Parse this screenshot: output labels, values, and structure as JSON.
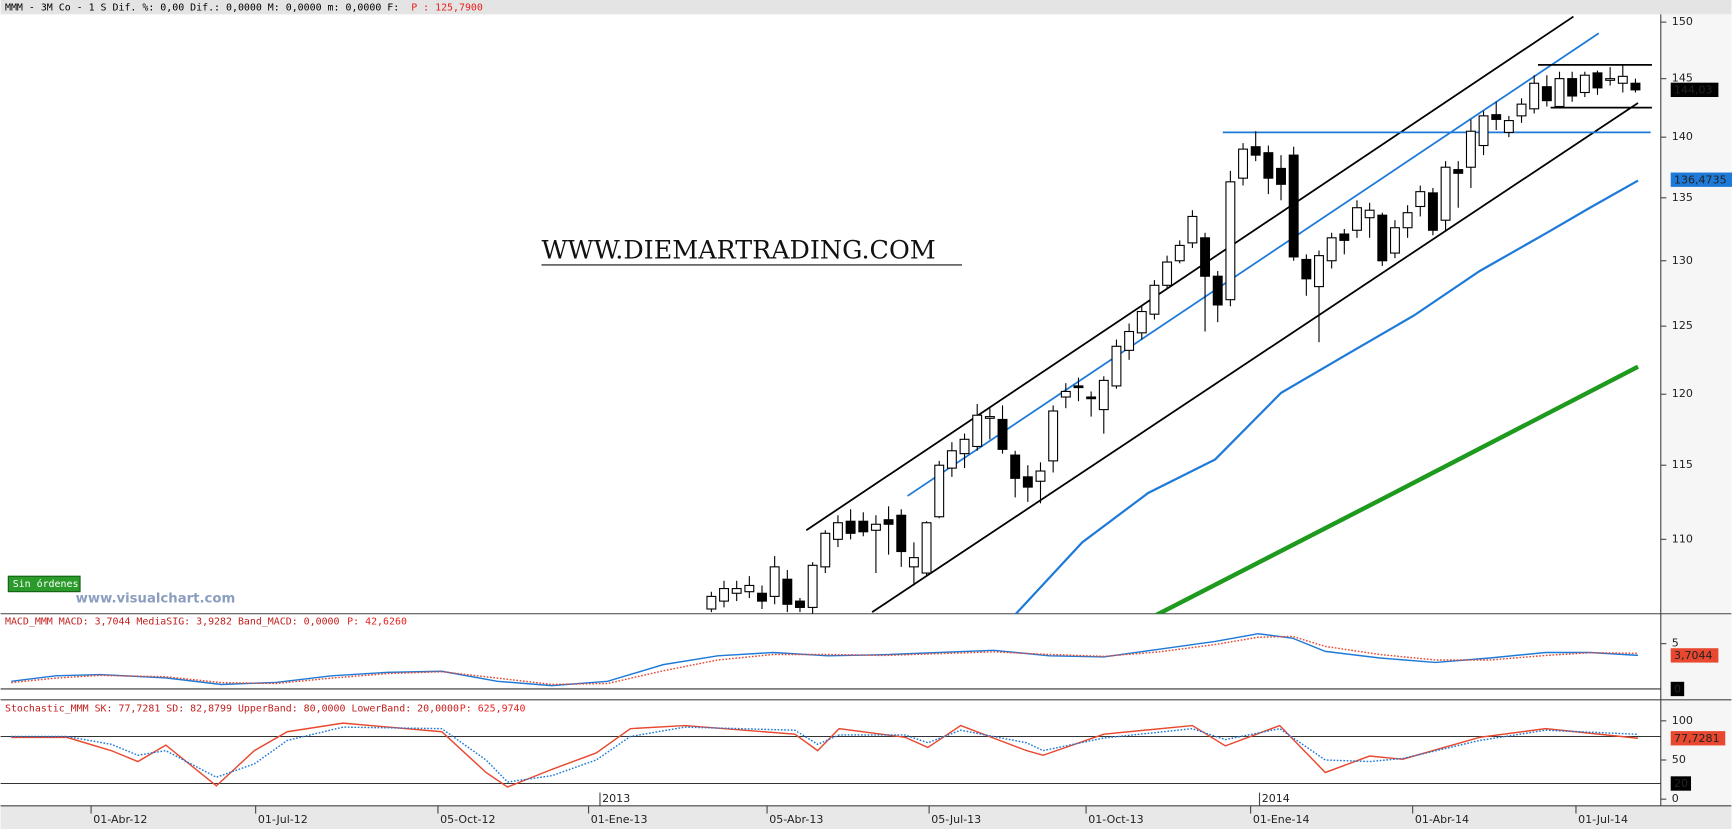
{
  "chart_data": [
    {
      "type": "candlestick",
      "title": "MMM - 3M Co -  1 S Dif. %: 0,00 Dif.: 0,0000 M: 0,0000 m: 0,0000 F:",
      "price_note": "P : 125,7900",
      "watermark": "WWW.DIEMARTRADING.COM",
      "source": "www.visualchart.com",
      "status": "Sin órdenes",
      "log_scale": true,
      "xlim": [
        -7.15,
        124.0
      ],
      "ylim": [
        105.2,
        150.6
      ],
      "yticks": [
        110,
        115,
        120,
        125,
        130,
        135,
        140,
        145,
        150
      ],
      "up_color": "#ffffff",
      "down_color": "#000000",
      "x": [
        49,
        50,
        51,
        52,
        53,
        54,
        55,
        56,
        57,
        58,
        59,
        60,
        61,
        62,
        63,
        64,
        65,
        66,
        67,
        68,
        69,
        70,
        71,
        72,
        73,
        74,
        75,
        76,
        77,
        78,
        79,
        80,
        81,
        82,
        83,
        84,
        85,
        86,
        87,
        88,
        89,
        90,
        91,
        92,
        93,
        94,
        95,
        96,
        97,
        98,
        99,
        100,
        101,
        102,
        103,
        104,
        105,
        106,
        107,
        108,
        109,
        110,
        111,
        112,
        113,
        114,
        115,
        116,
        117,
        118,
        119,
        120,
        121,
        122
      ],
      "open": [
        105.5,
        106,
        106.5,
        106.6,
        106.5,
        106.3,
        107.4,
        106,
        105.6,
        108.2,
        110,
        111.2,
        111.2,
        110.6,
        111.3,
        111.6,
        108.2,
        107.8,
        111.5,
        114.8,
        115.8,
        116.3,
        118.3,
        118.2,
        115.7,
        114.2,
        113.9,
        115.3,
        119.8,
        120.6,
        119.8,
        118.9,
        120.6,
        123.2,
        124.5,
        125.9,
        128.1,
        130,
        131.4,
        131.8,
        128.8,
        127,
        136.6,
        139.2,
        138.7,
        137.4,
        138.5,
        130.1,
        128,
        130,
        132.1,
        132.4,
        133.4,
        133.6,
        130.6,
        132.6,
        134.3,
        135.4,
        133.2,
        137.3,
        137.5,
        139.3,
        141.9,
        140.4,
        141.8,
        142.4,
        144.3,
        142.6,
        145,
        143.8,
        145.5,
        144.9,
        144.6,
        144.6
      ],
      "high": [
        106.6,
        107.3,
        107.3,
        107.6,
        107,
        108.9,
        108,
        106.2,
        108.5,
        110.6,
        111.6,
        112,
        111.8,
        111.6,
        112.2,
        112,
        109.8,
        111.2,
        115.3,
        116.6,
        117.2,
        119.3,
        119,
        119.2,
        116,
        115,
        115.2,
        119.2,
        120.8,
        121.2,
        120.2,
        121.3,
        124,
        125.2,
        126.6,
        128.5,
        130.4,
        131.6,
        134,
        132.2,
        129.2,
        137.2,
        139.5,
        140.5,
        139.3,
        138.5,
        139.2,
        130.5,
        130.8,
        132.2,
        132.5,
        134.8,
        134.6,
        133.8,
        133.2,
        134.4,
        136,
        135.8,
        138,
        138,
        141.5,
        142.2,
        143,
        141.8,
        143.3,
        145.3,
        145.3,
        145.6,
        145.6,
        145.6,
        145.7,
        146,
        146.2,
        145
      ],
      "low": [
        105.3,
        105.6,
        106,
        106.2,
        105.5,
        105.8,
        105.3,
        105.3,
        105.2,
        107.8,
        109.5,
        110,
        110.2,
        107.8,
        109,
        108.2,
        107,
        107.6,
        111.4,
        114.2,
        114.8,
        116,
        116.8,
        115.8,
        112.8,
        112.5,
        112.4,
        114.5,
        119,
        119.5,
        118.4,
        117.2,
        120.4,
        122.5,
        124,
        125.5,
        127.8,
        129.8,
        131,
        124.6,
        125.3,
        126.5,
        136,
        138,
        135.3,
        134.8,
        130,
        127.3,
        123.8,
        129.4,
        130.5,
        131.8,
        131.8,
        129.6,
        130.2,
        131.8,
        133.5,
        132,
        132.3,
        134.2,
        135.8,
        138.5,
        140.6,
        140,
        141.2,
        142,
        142.6,
        142.6,
        143,
        143.4,
        143.6,
        144.4,
        143.8,
        143.8
      ],
      "close": [
        106.3,
        106.8,
        106.8,
        107,
        106,
        108.2,
        105.8,
        105.6,
        108.3,
        110.4,
        111.1,
        110.4,
        110.5,
        111,
        111,
        109.2,
        108.8,
        111.1,
        115,
        116,
        116.8,
        118.5,
        118.4,
        116.1,
        114.1,
        113.5,
        114.6,
        118.8,
        120.2,
        120.5,
        119.7,
        121,
        123.5,
        124.6,
        126.1,
        128.1,
        129.9,
        131.2,
        133.5,
        128.8,
        126.6,
        136.3,
        139,
        138.5,
        136.6,
        136.1,
        130.3,
        128.6,
        130.4,
        131.8,
        131.6,
        134.2,
        134,
        130,
        132.6,
        133.8,
        135.5,
        132.4,
        137.5,
        137,
        140.5,
        141.8,
        141.5,
        141.4,
        142.8,
        144.6,
        143.1,
        145,
        143.5,
        145.3,
        144.2,
        145,
        145.2,
        144.03
      ],
      "moving_averages": [
        {
          "color": "#1e7ad8",
          "width": 2,
          "x": [
            72.9,
            78.3,
            83.5,
            88.8,
            94.0,
            99.2,
            104.5,
            109.7,
            115.0,
            118.4,
            122.2
          ],
          "values": [
            105.06,
            109.8,
            113.1,
            115.4,
            120.1,
            122.9,
            125.8,
            129.2,
            132.2,
            134.2,
            136.4
          ]
        },
        {
          "color": "#1e9a1e",
          "width": 4,
          "x": [
            84.0,
            102.7,
            122.2
          ],
          "values": [
            105.06,
            113.0,
            122.0
          ]
        }
      ],
      "trendlines": [
        {
          "color": "#000000",
          "x": [
            56.5,
            117.1
          ],
          "y": [
            110.6,
            150.5
          ]
        },
        {
          "color": "#000000",
          "x": [
            61.7,
            122.2
          ],
          "y": [
            105.3,
            142.9
          ]
        },
        {
          "color": "#1e7ad8",
          "x": [
            64.5,
            119.1
          ],
          "y": [
            112.9,
            149.0
          ]
        },
        {
          "color": "#1e7ad8",
          "x": [
            89.4,
            123.2
          ],
          "y": [
            140.4,
            140.4
          ]
        },
        {
          "color": "#000000",
          "x": [
            114.3,
            123.3
          ],
          "y": [
            146.2,
            146.2
          ]
        },
        {
          "color": "#000000",
          "x": [
            115.3,
            123.3
          ],
          "y": [
            142.5,
            142.5
          ]
        }
      ],
      "markers": [
        {
          "value": 144.03,
          "label": "144,03",
          "color": "#000000"
        },
        {
          "value": 136.4735,
          "label": "136,4735",
          "color": "#1e7ad8"
        }
      ]
    },
    {
      "type": "line",
      "title": "MACD_MMM MACD: 3,7044 MediaSIG: 3,9282 Band_MACD: 0,0000",
      "price_note": "P: 42,6260",
      "ylim": [
        -1.2,
        8.3
      ],
      "yticks": [
        5
      ],
      "bands": [
        0
      ],
      "series": [
        {
          "color": "#1e7ad8",
          "dash": false,
          "x": [
            -6.3,
            -2.8,
            0.7,
            5.9,
            10.3,
            14.6,
            19.0,
            23.4,
            27.7,
            32.1,
            36.4,
            40.8,
            45.2,
            49.5,
            53.9,
            58.2,
            62.6,
            67.0,
            71.3,
            75.7,
            80.0,
            84.4,
            88.8,
            92.2,
            94.9,
            97.5,
            101.8,
            106.2,
            110.5,
            114.9,
            118.4,
            122.2
          ],
          "values": [
            0.85,
            1.46,
            1.59,
            1.22,
            0.49,
            0.73,
            1.46,
            1.83,
            1.95,
            0.85,
            0.37,
            0.85,
            2.68,
            3.66,
            4.02,
            3.66,
            3.78,
            4.02,
            4.27,
            3.66,
            3.54,
            4.39,
            5.24,
            6.1,
            5.61,
            4.15,
            3.41,
            2.93,
            3.41,
            4.02,
            4.02,
            3.7044
          ]
        },
        {
          "color": "#e8482f",
          "dash": true,
          "x": [
            -6.3,
            -2.8,
            0.7,
            5.9,
            10.3,
            14.6,
            19.0,
            23.4,
            27.7,
            32.1,
            36.4,
            40.8,
            45.2,
            49.5,
            53.9,
            58.2,
            62.6,
            67.0,
            71.3,
            75.7,
            80.0,
            84.4,
            88.8,
            92.2,
            94.9,
            97.5,
            101.8,
            106.2,
            110.5,
            114.9,
            118.4,
            122.2
          ],
          "values": [
            0.7,
            1.2,
            1.5,
            1.35,
            0.7,
            0.6,
            1.2,
            1.7,
            1.9,
            1.2,
            0.5,
            0.6,
            2.0,
            3.2,
            3.8,
            3.8,
            3.7,
            3.9,
            4.1,
            3.8,
            3.6,
            4.1,
            4.9,
            5.7,
            5.8,
            4.7,
            3.8,
            3.2,
            3.2,
            3.7,
            4.0,
            3.9282
          ]
        }
      ],
      "markers": [
        {
          "value": 3.7044,
          "label": "3,7044",
          "color": "#e8482f"
        },
        {
          "value": 0,
          "label": "0",
          "color": "#000000"
        }
      ]
    },
    {
      "type": "line",
      "title": "Stochastic_MMM SK: 77,7281 SD: 82,8799 UpperBand: 80,0000 LowerBand: 20,0000",
      "price_note": "P: 625,9740",
      "ylim": [
        -8.5,
        126.8
      ],
      "yticks": [
        0,
        50,
        100
      ],
      "bands": [
        80,
        20
      ],
      "series": [
        {
          "color": "#e8482f",
          "dash": false,
          "x": [
            -6.3,
            -1.9,
            1.6,
            3.7,
            5.9,
            9.9,
            12.9,
            15.5,
            19.9,
            27.7,
            31.2,
            32.9,
            36.4,
            39.9,
            42.6,
            46.9,
            55.6,
            57.4,
            59.1,
            64.3,
            66.1,
            68.7,
            73.9,
            75.2,
            80.0,
            87.0,
            89.6,
            93.9,
            97.5,
            101.0,
            103.6,
            109.7,
            114.9,
            122.2
          ],
          "values": [
            78.9,
            78.9,
            62,
            48,
            69,
            17,
            62,
            86,
            97,
            86,
            34,
            15.5,
            38,
            59,
            90,
            94,
            83,
            62,
            90,
            79,
            66,
            94,
            62,
            56,
            83,
            94,
            68,
            94,
            34,
            55,
            51,
            79,
            90,
            77.7281
          ]
        },
        {
          "color": "#1e7ad8",
          "dash": true,
          "x": [
            -6.3,
            -1.9,
            1.6,
            3.7,
            5.9,
            9.9,
            12.9,
            15.5,
            19.9,
            27.7,
            31.2,
            32.9,
            36.4,
            39.9,
            42.6,
            46.9,
            55.6,
            57.4,
            59.1,
            64.3,
            66.1,
            68.7,
            73.9,
            75.2,
            80.0,
            87.0,
            89.6,
            93.9,
            97.5,
            101.0,
            103.6,
            109.7,
            114.9,
            122.2
          ],
          "values": [
            80,
            80,
            70,
            56,
            62,
            28,
            45,
            75,
            92,
            90,
            50,
            22,
            30,
            50,
            80,
            92,
            88,
            70,
            82,
            82,
            72,
            88,
            72,
            62,
            78,
            90,
            76,
            90,
            50,
            48,
            52,
            75,
            88,
            82.8799
          ]
        }
      ],
      "markers": [
        {
          "value": 77.7281,
          "label": "77,7281",
          "color": "#e8482f"
        },
        {
          "value": 20,
          "label": "20",
          "color": "#000000"
        }
      ],
      "xticks": [
        {
          "value": 0,
          "label": "01-Abr-12"
        },
        {
          "value": 13,
          "label": "01-Jul-12"
        },
        {
          "value": 27.4,
          "label": "05-Oct-12"
        },
        {
          "value": 39.3,
          "label": "01-Ene-13"
        },
        {
          "value": 53.4,
          "label": "05-Abr-13"
        },
        {
          "value": 66.2,
          "label": "05-Jul-13"
        },
        {
          "value": 78.6,
          "label": "01-Oct-13"
        },
        {
          "value": 91.6,
          "label": "01-Ene-14"
        },
        {
          "value": 104.4,
          "label": "01-Abr-14"
        },
        {
          "value": 117.3,
          "label": "01-Jul-14"
        }
      ],
      "year_marks": [
        {
          "value": 40.2,
          "label": "2013"
        },
        {
          "value": 92.3,
          "label": "2014"
        }
      ]
    }
  ]
}
